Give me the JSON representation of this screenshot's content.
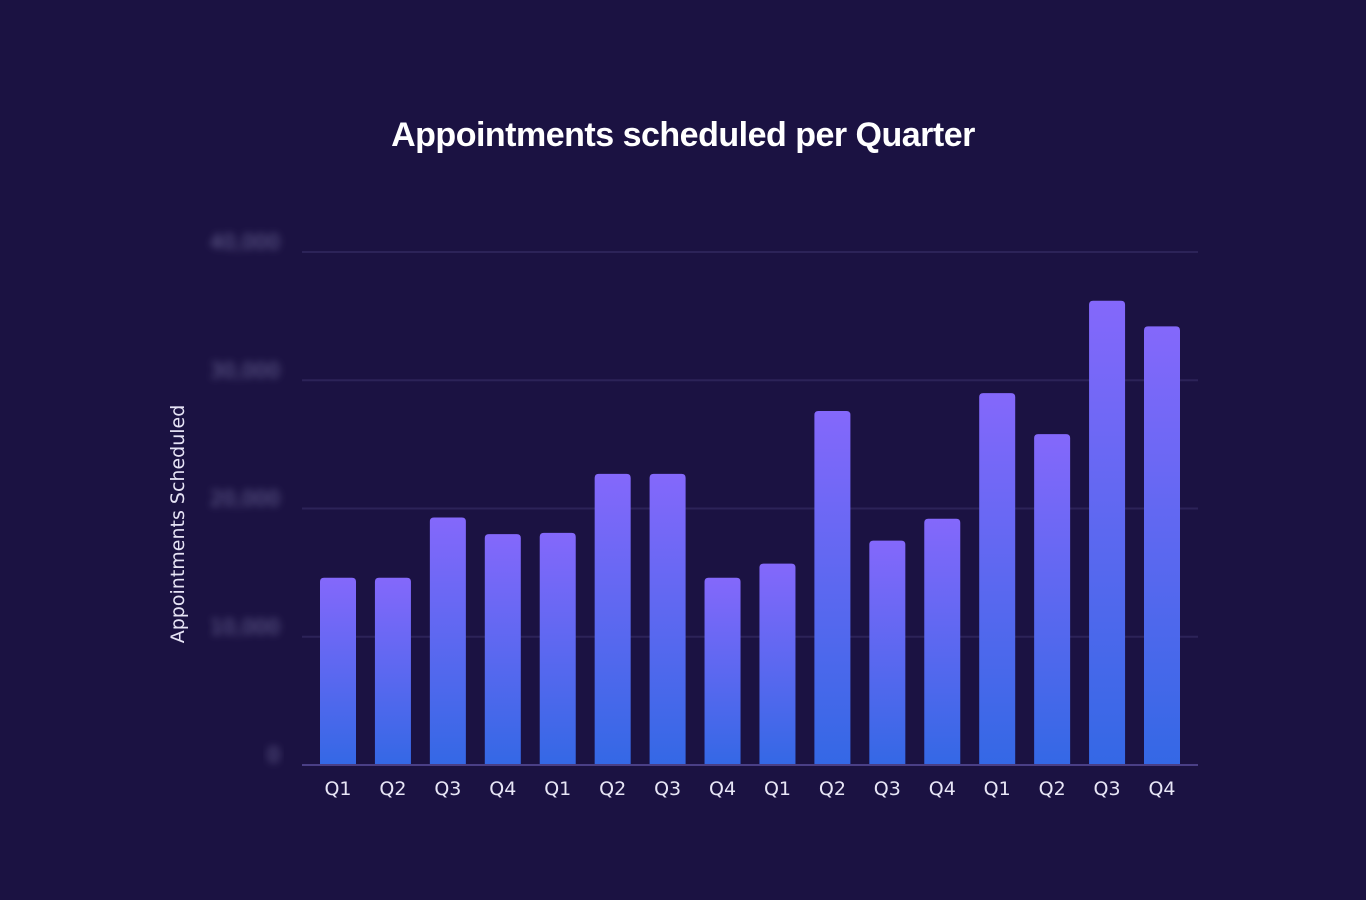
{
  "chart_data": {
    "type": "bar",
    "title": "Appointments scheduled per Quarter",
    "ylabel": "Appointments Scheduled",
    "xlabel": "",
    "categories": [
      "Q1",
      "Q2",
      "Q3",
      "Q4",
      "Q1",
      "Q2",
      "Q3",
      "Q4",
      "Q1",
      "Q2",
      "Q3",
      "Q4",
      "Q1",
      "Q2",
      "Q3",
      "Q4"
    ],
    "values": [
      14600,
      14600,
      19300,
      18000,
      18100,
      22700,
      22700,
      14600,
      15700,
      27600,
      17500,
      19200,
      29000,
      25800,
      36200,
      34200
    ],
    "ylim": [
      0,
      40000
    ],
    "yticks": [
      0,
      10000,
      20000,
      30000,
      40000
    ],
    "ytick_labels_blurred": true,
    "grid": true,
    "colors": {
      "background": "#1b1242",
      "bar_top": "#8468fb",
      "bar_bottom": "#3468e5",
      "grid": "#2c2358",
      "baseline": "#4a3f86",
      "title": "#ffffff",
      "text": "#e8e6f6"
    }
  }
}
